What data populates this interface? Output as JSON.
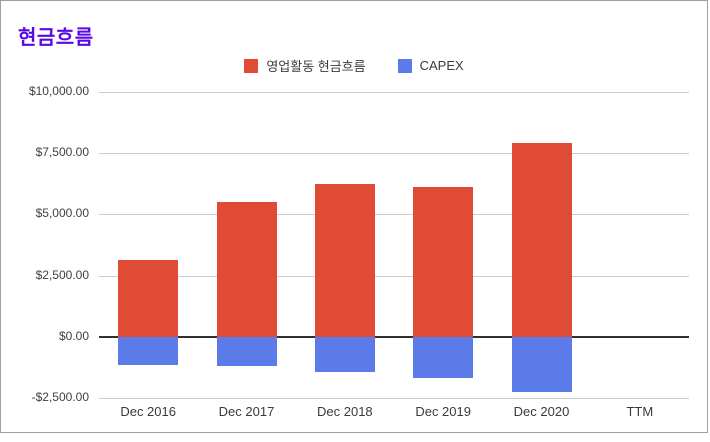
{
  "title": {
    "text": "현금흐름",
    "color": "#5A0AE6"
  },
  "card": {
    "border_color": "#9e9e9e"
  },
  "chart_data": {
    "type": "bar",
    "stacked": true,
    "title": "현금흐름",
    "categories": [
      "Dec 2016",
      "Dec 2017",
      "Dec 2018",
      "Dec 2019",
      "Dec 2020",
      "TTM"
    ],
    "series": [
      {
        "name": "영업활동 현금흐름",
        "color": "#E04B35",
        "values": [
          3150,
          5500,
          6250,
          6100,
          7900,
          null
        ]
      },
      {
        "name": "CAPEX",
        "color": "#5A7BE8",
        "values": [
          -1150,
          -1200,
          -1450,
          -1700,
          -2250,
          null
        ]
      }
    ],
    "xlabel": "",
    "ylabel": "",
    "ylim": [
      -2500,
      10000
    ],
    "y_ticks": [
      {
        "value": 10000,
        "label": "$10,000.00"
      },
      {
        "value": 7500,
        "label": "$7,500.00"
      },
      {
        "value": 5000,
        "label": "$5,000.00"
      },
      {
        "value": 2500,
        "label": "$2,500.00"
      },
      {
        "value": 0,
        "label": "$0.00"
      },
      {
        "value": -2500,
        "label": "-$2,500.00"
      }
    ],
    "grid": true,
    "legend_position": "top",
    "zero_line_color": "#2f2f2f",
    "gridline_color": "#cccccc",
    "axis_text_color": "#3c3c3c"
  }
}
